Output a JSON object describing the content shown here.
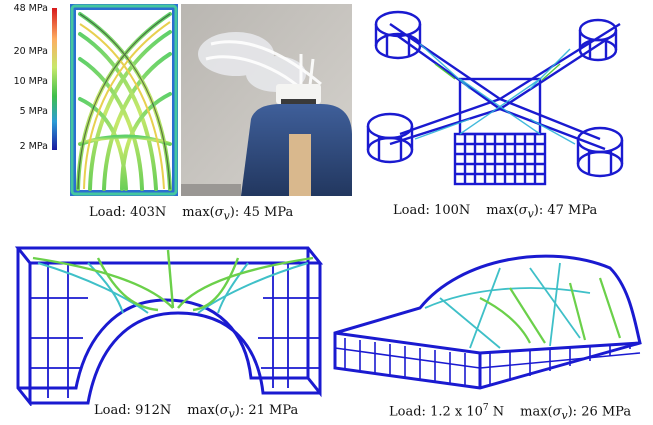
{
  "colorbar": {
    "labels": [
      "48 MPa",
      "20 MPa",
      "10 MPa",
      "5 MPa",
      "2 MPa"
    ],
    "colors": [
      "#d7191c",
      "#fdae61",
      "#a6d96a",
      "#1a9641",
      "#2c7bb6",
      "#1a1aa0"
    ]
  },
  "panels": [
    {
      "name": "bracket-test",
      "load_label": "Load:",
      "load_value": "403N",
      "stress_prefix": "max(",
      "sigma": "σ",
      "sigma_sub": "v",
      "stress_suffix": "): 45 MPa"
    },
    {
      "name": "quadcopter-frame",
      "load_label": "Load:",
      "load_value": "100N",
      "stress_prefix": "max(",
      "sigma": "σ",
      "sigma_sub": "v",
      "stress_suffix": "): 47 MPa"
    },
    {
      "name": "arch-bridge",
      "load_label": "Load:",
      "load_value": "912N",
      "stress_prefix": "max(",
      "sigma": "σ",
      "sigma_sub": "v",
      "stress_suffix": "): 21 MPa"
    },
    {
      "name": "car-body",
      "load_label": "Load:",
      "load_value_base": "1.2 x 10",
      "load_value_exp": "7",
      "load_value_unit": " N",
      "stress_prefix": "max(",
      "sigma": "σ",
      "sigma_sub": "v",
      "stress_suffix": "): 26 MPa"
    }
  ]
}
